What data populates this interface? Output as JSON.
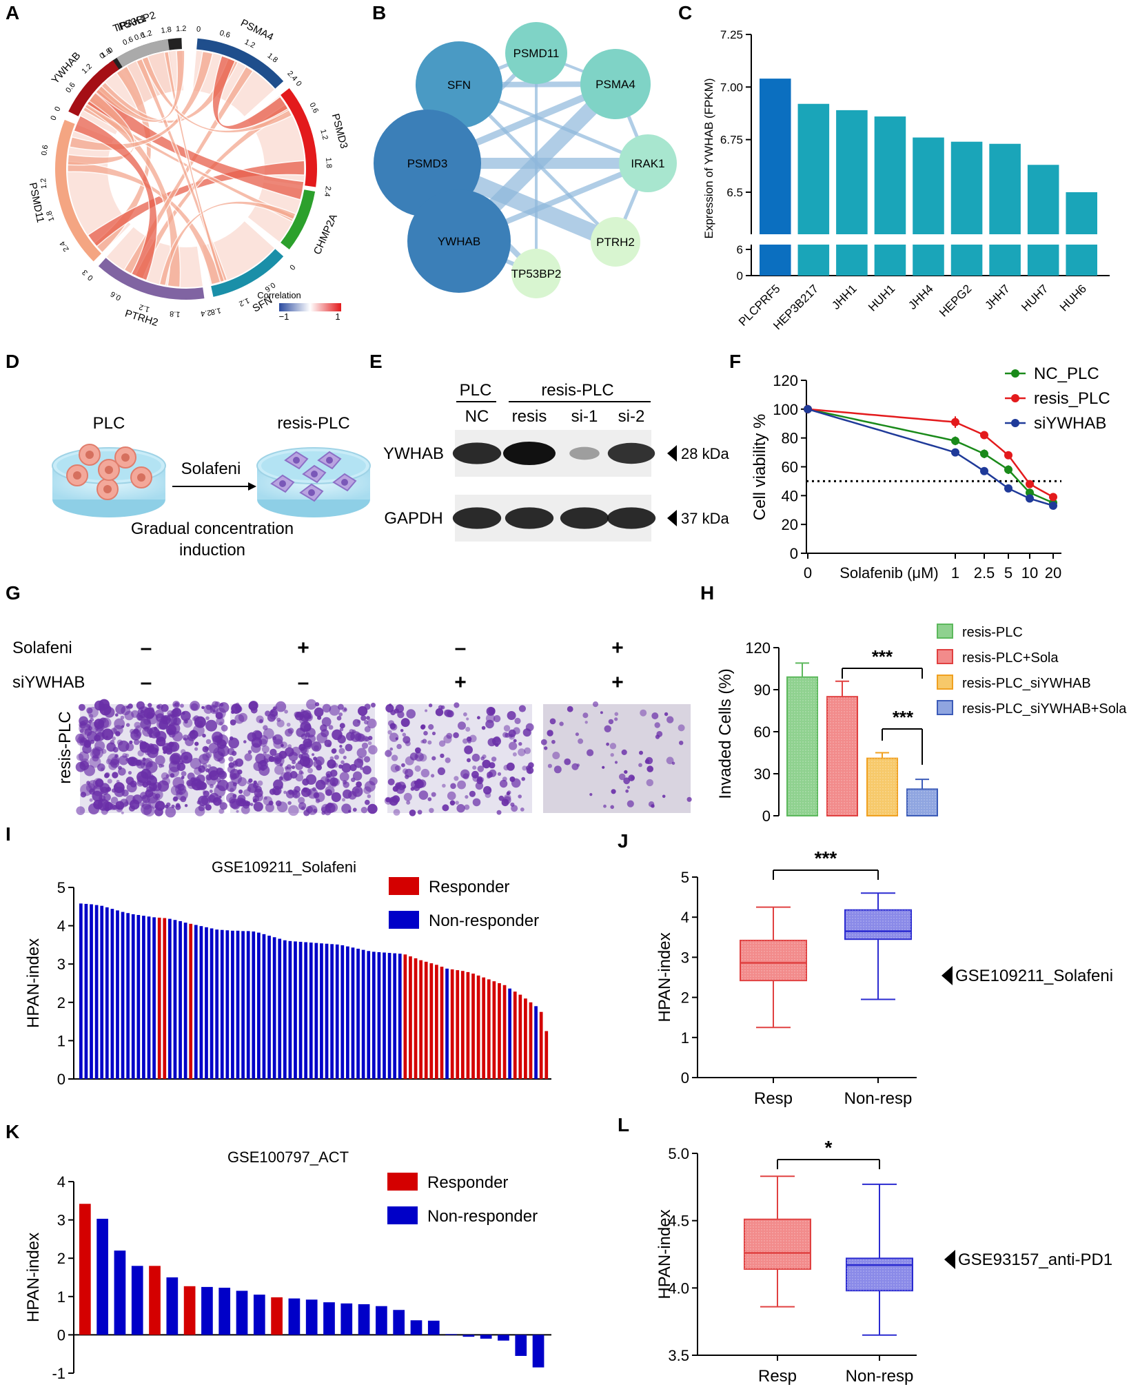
{
  "figure": {
    "panel_letters": [
      "A",
      "B",
      "C",
      "D",
      "E",
      "F",
      "G",
      "H",
      "I",
      "J",
      "K",
      "L"
    ]
  },
  "chart_data": [
    {
      "panel": "A",
      "type": "chord",
      "segments": [
        {
          "name": "TP53BP2",
          "ticks": [
            "0",
            "0.6",
            "1.2"
          ],
          "color": "#222222"
        },
        {
          "name": "PSMA4",
          "ticks": [
            "0",
            "0.6",
            "1.2",
            "1.8",
            "2.4"
          ],
          "color": "#1f4e8c"
        },
        {
          "name": "PSMD3",
          "ticks": [
            "0",
            "0.6",
            "1.2",
            "1.8",
            "2.4"
          ],
          "color": "#e31a1c"
        },
        {
          "name": "CHMP2A",
          "ticks": [],
          "color": "#2ca02c"
        },
        {
          "name": "SFN",
          "ticks": [
            "0",
            "0.6",
            "1.2",
            "1.8"
          ],
          "color": "#1a8fa8"
        },
        {
          "name": "PTRH2",
          "ticks": [
            "2.4",
            "1.8",
            "1.2",
            "0.6",
            "0"
          ],
          "color": "#8064a2"
        },
        {
          "name": "PSMD11",
          "ticks": [
            "3",
            "2.4",
            "1.8",
            "1.2",
            "0.6",
            "0"
          ],
          "color": "#f4a582"
        },
        {
          "name": "YWHAB",
          "ticks": [
            "0",
            "0.6",
            "1.2",
            "1.8"
          ],
          "color": "#a50f15"
        },
        {
          "name": "IRAK1",
          "ticks": [
            "0",
            "0.6",
            "1.2",
            "1.8"
          ],
          "color": "#aaaaaa"
        }
      ],
      "legend_title": "Correlation",
      "legend_min": "−1",
      "legend_max": "1"
    },
    {
      "panel": "B",
      "type": "network",
      "nodes": [
        {
          "name": "PSMD11",
          "size": 0.45,
          "color": "#7fd3c6"
        },
        {
          "name": "PSMA4",
          "size": 0.55,
          "color": "#7fd3c6"
        },
        {
          "name": "SFN",
          "size": 0.75,
          "color": "#4a9ac4"
        },
        {
          "name": "IRAK1",
          "size": 0.4,
          "color": "#a8e6cf"
        },
        {
          "name": "PSMD3",
          "size": 1.0,
          "color": "#3b7fb8"
        },
        {
          "name": "PTRH2",
          "size": 0.3,
          "color": "#d8f5d0"
        },
        {
          "name": "YWHAB",
          "size": 0.95,
          "color": "#3b7fb8"
        },
        {
          "name": "TP53BP2",
          "size": 0.3,
          "color": "#d8f5d0"
        }
      ]
    },
    {
      "panel": "C",
      "type": "bar",
      "categories": [
        "PLCPRF5",
        "HEP3B217",
        "JHH1",
        "HUH1",
        "JHH4",
        "HEPG2",
        "JHH7",
        "HUH7",
        "HUH6"
      ],
      "values": [
        7.04,
        6.92,
        6.89,
        6.86,
        6.76,
        6.74,
        6.73,
        6.63,
        6.5
      ],
      "ylabel": "Expression of YWHAB (FPKM)",
      "yticks_upper": [
        "6.5",
        "6.75",
        "7.00",
        "7.25"
      ],
      "yticks_lower": [
        "0",
        "6"
      ],
      "ylim": [
        6.3,
        7.25
      ]
    },
    {
      "panel": "E",
      "type": "blot",
      "group_plc": "PLC",
      "group_resis": "resis-PLC",
      "lanes": [
        "NC",
        "resis",
        "si-1",
        "si-2"
      ],
      "rows": [
        {
          "label": "YWHAB",
          "kda": "28 kDa",
          "intensity": [
            0.85,
            1.0,
            0.15,
            0.8
          ]
        },
        {
          "label": "GAPDH",
          "kda": "37 kDa",
          "intensity": [
            0.85,
            0.85,
            0.85,
            0.85
          ]
        }
      ]
    },
    {
      "panel": "F",
      "type": "line",
      "xlabel": "Solafenib (μM)",
      "ylabel": "Cell viability %",
      "x": [
        0,
        1,
        2.5,
        5,
        10,
        20
      ],
      "xtick_labels": [
        "0",
        "1",
        "2.5",
        "5",
        "10",
        "20"
      ],
      "yticks": [
        "0",
        "20",
        "40",
        "60",
        "80",
        "100",
        "120"
      ],
      "ylim": [
        0,
        120
      ],
      "reference_line": 50,
      "series": [
        {
          "name": "NC_PLC",
          "color": "#1a8a1a",
          "values": [
            100,
            78,
            69,
            58,
            42,
            35
          ],
          "errors": [
            3,
            3,
            3,
            3,
            2,
            2
          ]
        },
        {
          "name": "resis_PLC",
          "color": "#e31a1c",
          "values": [
            100,
            91,
            82,
            68,
            48,
            39
          ],
          "errors": [
            3,
            4,
            2,
            2,
            2,
            2
          ]
        },
        {
          "name": "siYWHAB",
          "color": "#1f3a99",
          "values": [
            100,
            70,
            57,
            45,
            38,
            33
          ],
          "errors": [
            2,
            2,
            2,
            2,
            2,
            2
          ]
        }
      ]
    },
    {
      "panel": "H",
      "type": "bar",
      "ylabel": "Invaded Cells (%)",
      "yticks": [
        "0",
        "30",
        "60",
        "90",
        "120"
      ],
      "ylim": [
        0,
        120
      ],
      "series": [
        {
          "name": "resis-PLC",
          "value": 99,
          "error": 10,
          "color": "#5cb85c",
          "fill": "#8fd18f"
        },
        {
          "name": "resis-PLC+Sola",
          "value": 85,
          "error": 11,
          "color": "#e04040",
          "fill": "#f28b8b"
        },
        {
          "name": "resis-PLC_siYWHAB",
          "value": 41,
          "error": 4,
          "color": "#f0a020",
          "fill": "#f7c96a"
        },
        {
          "name": "resis-PLC_siYWHAB+Sola",
          "value": 19,
          "error": 7,
          "color": "#3b5bb8",
          "fill": "#8fa5e0"
        }
      ],
      "significance": [
        "***",
        "***"
      ]
    },
    {
      "panel": "I",
      "type": "bar",
      "title": "GSE109211_Solafeni",
      "ylabel": "HPAN-index",
      "yticks": [
        "0",
        "1",
        "2",
        "3",
        "4",
        "5"
      ],
      "ylim": [
        0,
        5
      ],
      "legend": [
        {
          "name": "Responder",
          "color": "#d40000"
        },
        {
          "name": "Non-responder",
          "color": "#0000c8"
        }
      ],
      "values": [
        4.58,
        4.57,
        4.56,
        4.54,
        4.52,
        4.48,
        4.44,
        4.4,
        4.36,
        4.33,
        4.3,
        4.28,
        4.26,
        4.24,
        4.22,
        4.21,
        4.2,
        4.18,
        4.15,
        4.12,
        4.08,
        4.05,
        4.02,
        3.99,
        3.96,
        3.93,
        3.9,
        3.89,
        3.88,
        3.87,
        3.87,
        3.86,
        3.86,
        3.85,
        3.82,
        3.78,
        3.74,
        3.7,
        3.66,
        3.62,
        3.6,
        3.59,
        3.58,
        3.57,
        3.56,
        3.55,
        3.54,
        3.53,
        3.52,
        3.51,
        3.49,
        3.46,
        3.43,
        3.4,
        3.37,
        3.34,
        3.32,
        3.31,
        3.3,
        3.29,
        3.28,
        3.27,
        3.25,
        3.2,
        3.15,
        3.1,
        3.06,
        3.02,
        2.98,
        2.93,
        2.88,
        2.86,
        2.84,
        2.82,
        2.79,
        2.75,
        2.7,
        2.65,
        2.6,
        2.55,
        2.5,
        2.45,
        2.36,
        2.28,
        2.2,
        2.1,
        2.0,
        1.9,
        1.75,
        1.25
      ],
      "group": [
        "N",
        "N",
        "N",
        "N",
        "N",
        "N",
        "N",
        "N",
        "N",
        "N",
        "N",
        "N",
        "N",
        "N",
        "N",
        "R",
        "R",
        "N",
        "N",
        "N",
        "N",
        "R",
        "N",
        "N",
        "N",
        "N",
        "N",
        "N",
        "N",
        "N",
        "N",
        "N",
        "N",
        "N",
        "N",
        "N",
        "N",
        "N",
        "N",
        "N",
        "N",
        "N",
        "N",
        "N",
        "N",
        "N",
        "N",
        "N",
        "N",
        "N",
        "N",
        "N",
        "N",
        "N",
        "N",
        "N",
        "N",
        "N",
        "N",
        "N",
        "N",
        "N",
        "R",
        "R",
        "R",
        "R",
        "R",
        "R",
        "R",
        "R",
        "N",
        "R",
        "R",
        "R",
        "R",
        "R",
        "R",
        "R",
        "R",
        "R",
        "R",
        "R",
        "N",
        "R",
        "R",
        "R",
        "R",
        "N",
        "R",
        "R"
      ]
    },
    {
      "panel": "J",
      "type": "box",
      "ylabel": "HPAN-index",
      "yticks": [
        "0",
        "1",
        "2",
        "3",
        "4",
        "5"
      ],
      "ylim": [
        0,
        5
      ],
      "categories": [
        "Resp",
        "Non-resp"
      ],
      "boxes": [
        {
          "min": 1.25,
          "q1": 2.42,
          "median": 2.86,
          "q3": 3.42,
          "max": 4.25,
          "color": "#e04040",
          "fill": "#f28b8b"
        },
        {
          "min": 1.95,
          "q1": 3.45,
          "median": 3.65,
          "q3": 4.18,
          "max": 4.6,
          "color": "#2a2ad0",
          "fill": "#8a8ae8"
        }
      ],
      "significance": "***",
      "dataset": "GSE109211_Solafeni"
    },
    {
      "panel": "K",
      "type": "bar",
      "title": "GSE100797_ACT",
      "ylabel": "HPAN-index",
      "yticks": [
        "-1",
        "0",
        "1",
        "2",
        "3",
        "4"
      ],
      "ylim": [
        -1,
        4
      ],
      "legend": [
        {
          "name": "Responder",
          "color": "#d40000"
        },
        {
          "name": "Non-responder",
          "color": "#0000c8"
        }
      ],
      "values": [
        3.42,
        3.03,
        2.2,
        1.8,
        1.8,
        1.5,
        1.27,
        1.25,
        1.23,
        1.15,
        1.05,
        0.98,
        0.95,
        0.92,
        0.85,
        0.82,
        0.8,
        0.75,
        0.65,
        0.38,
        0.37,
        0.02,
        -0.05,
        -0.1,
        -0.15,
        -0.55,
        -0.85
      ],
      "group": [
        "R",
        "N",
        "N",
        "N",
        "R",
        "N",
        "R",
        "N",
        "N",
        "N",
        "N",
        "R",
        "N",
        "N",
        "N",
        "N",
        "N",
        "N",
        "N",
        "N",
        "N",
        "N",
        "N",
        "N",
        "N",
        "N",
        "N"
      ]
    },
    {
      "panel": "L",
      "type": "box",
      "ylabel": "HPAN-index",
      "yticks": [
        "3.5",
        "4.0",
        "4.5",
        "5.0"
      ],
      "ylim": [
        3.5,
        5.0
      ],
      "categories": [
        "Resp",
        "Non-resp"
      ],
      "boxes": [
        {
          "min": 3.86,
          "q1": 4.14,
          "median": 4.26,
          "q3": 4.51,
          "max": 4.83,
          "color": "#e04040",
          "fill": "#f28b8b"
        },
        {
          "min": 3.65,
          "q1": 3.98,
          "median": 4.17,
          "q3": 4.22,
          "max": 4.77,
          "color": "#2a2ad0",
          "fill": "#8a8ae8"
        }
      ],
      "significance": "*",
      "dataset": "GSE93157_anti-PD1"
    }
  ],
  "panel_d": {
    "left_label": "PLC",
    "right_label": "resis-PLC",
    "arrow_label": "Solafeni",
    "caption_line1": "Gradual concentration",
    "caption_line2": "induction"
  },
  "panel_g": {
    "row1_label": "Solafeni",
    "row2_label": "siYWHAB",
    "row1_signs": [
      "–",
      "+",
      "–",
      "+"
    ],
    "row2_signs": [
      "–",
      "–",
      "+",
      "+"
    ],
    "side_label": "resis-PLC",
    "density": [
      1.0,
      0.75,
      0.45,
      0.15
    ]
  }
}
